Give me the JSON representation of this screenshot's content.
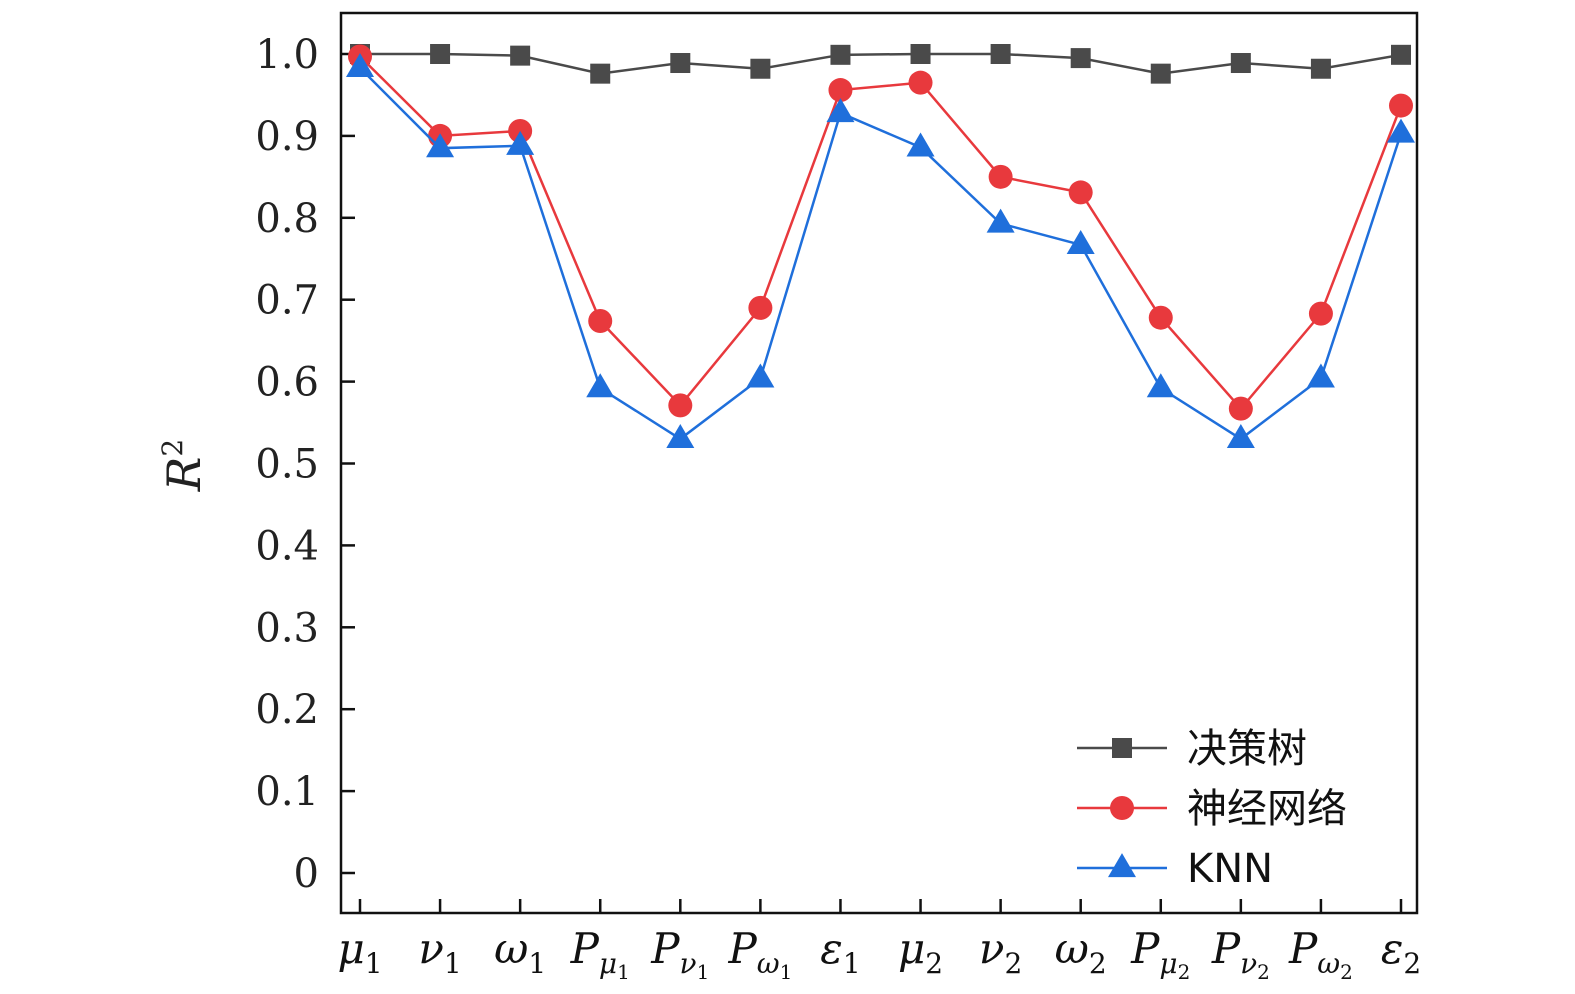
{
  "chart_data": {
    "type": "line",
    "title": "",
    "xlabel": "",
    "ylabel": {
      "base": "R",
      "sup": "2"
    },
    "ylim": [
      -0.05,
      1.05
    ],
    "yticks": [
      0,
      0.1,
      0.2,
      0.3,
      0.4,
      0.5,
      0.6,
      0.7,
      0.8,
      0.9,
      1.0
    ],
    "ytick_labels": [
      "0",
      "0.1",
      "0.2",
      "0.3",
      "0.4",
      "0.5",
      "0.6",
      "0.7",
      "0.8",
      "0.9",
      "1.0"
    ],
    "grid": false,
    "legend_position": "bottom-right",
    "categories": [
      {
        "base": "μ",
        "sub": "1"
      },
      {
        "base": "ν",
        "sub": "1"
      },
      {
        "base": "ω",
        "sub": "1"
      },
      {
        "base": "P",
        "sub": "μ",
        "subsub": "1"
      },
      {
        "base": "P",
        "sub": "ν",
        "subsub": "1"
      },
      {
        "base": "P",
        "sub": "ω",
        "subsub": "1"
      },
      {
        "base": "ε",
        "sub": "1"
      },
      {
        "base": "μ",
        "sub": "2"
      },
      {
        "base": "ν",
        "sub": "2"
      },
      {
        "base": "ω",
        "sub": "2"
      },
      {
        "base": "P",
        "sub": "μ",
        "subsub": "2"
      },
      {
        "base": "P",
        "sub": "ν",
        "subsub": "2"
      },
      {
        "base": "P",
        "sub": "ω",
        "subsub": "2"
      },
      {
        "base": "ε",
        "sub": "2"
      }
    ],
    "series": [
      {
        "name": "决策树",
        "color": "#4a4a4a",
        "marker": "square",
        "values": [
          1.0,
          1.0,
          0.998,
          0.976,
          0.989,
          0.982,
          0.999,
          1.0,
          1.0,
          0.995,
          0.976,
          0.989,
          0.982,
          0.999
        ]
      },
      {
        "name": "神经网络",
        "color": "#e8393d",
        "marker": "circle",
        "values": [
          0.997,
          0.9,
          0.906,
          0.674,
          0.571,
          0.69,
          0.956,
          0.965,
          0.85,
          0.831,
          0.678,
          0.567,
          0.683,
          0.937
        ]
      },
      {
        "name": "KNN",
        "color": "#1f6fdb",
        "marker": "triangle",
        "values": [
          0.983,
          0.885,
          0.888,
          0.592,
          0.53,
          0.604,
          0.928,
          0.886,
          0.793,
          0.767,
          0.592,
          0.53,
          0.604,
          0.903
        ]
      }
    ]
  }
}
